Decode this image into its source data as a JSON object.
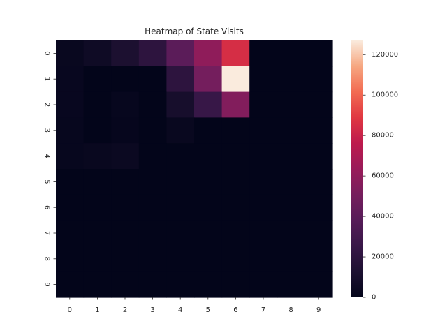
{
  "chart_data": {
    "type": "heatmap",
    "title": "Heatmap of State Visits",
    "xlabel": "",
    "ylabel": "",
    "x_categories": [
      "0",
      "1",
      "2",
      "3",
      "4",
      "5",
      "6",
      "7",
      "8",
      "9"
    ],
    "y_categories": [
      "0",
      "1",
      "2",
      "3",
      "4",
      "5",
      "6",
      "7",
      "8",
      "9"
    ],
    "values": [
      [
        3000,
        6000,
        12000,
        20000,
        40000,
        60000,
        85000,
        0,
        0,
        0
      ],
      [
        2500,
        0,
        0,
        0,
        20000,
        50000,
        127000,
        0,
        0,
        0
      ],
      [
        2500,
        0,
        2000,
        0,
        10000,
        25000,
        55000,
        0,
        0,
        0
      ],
      [
        2000,
        0,
        1500,
        0,
        3000,
        0,
        0,
        0,
        0,
        0
      ],
      [
        2000,
        3000,
        4000,
        0,
        0,
        0,
        0,
        0,
        0,
        0
      ],
      [
        0,
        0,
        0,
        0,
        0,
        0,
        0,
        0,
        0,
        0
      ],
      [
        0,
        0,
        0,
        0,
        0,
        0,
        0,
        0,
        0,
        0
      ],
      [
        0,
        0,
        0,
        0,
        0,
        0,
        0,
        0,
        0,
        0
      ],
      [
        0,
        0,
        0,
        0,
        0,
        0,
        0,
        0,
        0,
        0
      ],
      [
        0,
        0,
        0,
        0,
        0,
        0,
        0,
        0,
        0,
        0
      ]
    ],
    "colorbar": {
      "range": [
        0,
        127000
      ],
      "ticks": [
        0,
        20000,
        40000,
        60000,
        80000,
        100000,
        120000
      ],
      "tick_labels": [
        "0",
        "20000",
        "40000",
        "60000",
        "80000",
        "100000",
        "120000"
      ]
    },
    "colormap": "rocket",
    "grid": false
  }
}
